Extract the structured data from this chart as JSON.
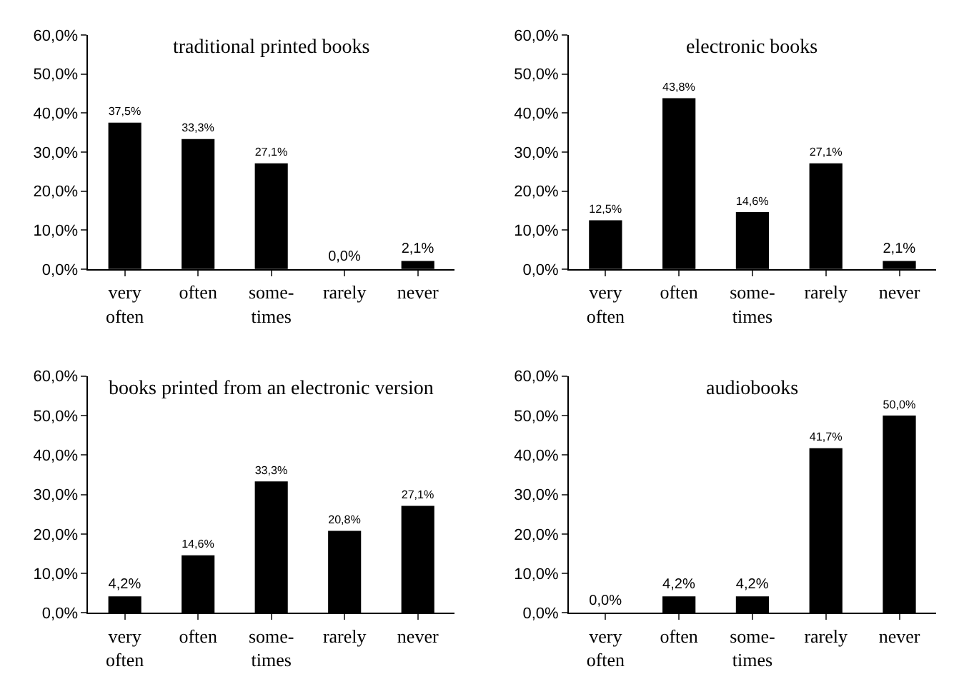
{
  "chart_data": [
    {
      "type": "bar",
      "title": "traditional printed books",
      "categories": [
        "very\noften",
        "often",
        "some-\ntimes",
        "rarely",
        "never"
      ],
      "values": [
        37.5,
        33.3,
        27.1,
        0.0,
        2.1
      ],
      "value_labels": [
        "37,5%",
        "33,3%",
        "27,1%",
        "0,0%",
        "2,1%"
      ],
      "color": "#000000",
      "ylim": [
        0,
        60
      ],
      "yticks": [
        {
          "value": 0,
          "label": "0,0%"
        },
        {
          "value": 10,
          "label": "10,0%"
        },
        {
          "value": 20,
          "label": "20,0%"
        },
        {
          "value": 30,
          "label": "30,0%"
        },
        {
          "value": 40,
          "label": "40,0%"
        },
        {
          "value": 50,
          "label": "50,0%"
        },
        {
          "value": 60,
          "label": "60,0%"
        }
      ],
      "grid": false,
      "legend": false
    },
    {
      "type": "bar",
      "title": "electronic books",
      "categories": [
        "very\noften",
        "often",
        "some-\ntimes",
        "rarely",
        "never"
      ],
      "values": [
        12.5,
        43.8,
        14.6,
        27.1,
        2.1
      ],
      "value_labels": [
        "12,5%",
        "43,8%",
        "14,6%",
        "27,1%",
        "2,1%"
      ],
      "color": "#000000",
      "ylim": [
        0,
        60
      ],
      "yticks": [
        {
          "value": 0,
          "label": "0,0%"
        },
        {
          "value": 10,
          "label": "10,0%"
        },
        {
          "value": 20,
          "label": "20,0%"
        },
        {
          "value": 30,
          "label": "30,0%"
        },
        {
          "value": 40,
          "label": "40,0%"
        },
        {
          "value": 50,
          "label": "50,0%"
        },
        {
          "value": 60,
          "label": "60,0%"
        }
      ],
      "grid": false,
      "legend": false
    },
    {
      "type": "bar",
      "title": "books printed from an electronic version",
      "categories": [
        "very\noften",
        "often",
        "some-\ntimes",
        "rarely",
        "never"
      ],
      "values": [
        4.2,
        14.6,
        33.3,
        20.8,
        27.1
      ],
      "value_labels": [
        "4,2%",
        "14,6%",
        "33,3%",
        "20,8%",
        "27,1%"
      ],
      "color": "#000000",
      "ylim": [
        0,
        60
      ],
      "yticks": [
        {
          "value": 0,
          "label": "0,0%"
        },
        {
          "value": 10,
          "label": "10,0%"
        },
        {
          "value": 20,
          "label": "20,0%"
        },
        {
          "value": 30,
          "label": "30,0%"
        },
        {
          "value": 40,
          "label": "40,0%"
        },
        {
          "value": 50,
          "label": "50,0%"
        },
        {
          "value": 60,
          "label": "60,0%"
        }
      ],
      "grid": false,
      "legend": false
    },
    {
      "type": "bar",
      "title": "audiobooks",
      "categories": [
        "very\noften",
        "often",
        "some-\ntimes",
        "rarely",
        "never"
      ],
      "values": [
        0.0,
        4.2,
        4.2,
        41.7,
        50.0
      ],
      "value_labels": [
        "0,0%",
        "4,2%",
        "4,2%",
        "41,7%",
        "50,0%"
      ],
      "color": "#000000",
      "ylim": [
        0,
        60
      ],
      "yticks": [
        {
          "value": 0,
          "label": "0,0%"
        },
        {
          "value": 10,
          "label": "10,0%"
        },
        {
          "value": 20,
          "label": "20,0%"
        },
        {
          "value": 30,
          "label": "30,0%"
        },
        {
          "value": 40,
          "label": "40,0%"
        },
        {
          "value": 50,
          "label": "50,0%"
        },
        {
          "value": 60,
          "label": "60,0%"
        }
      ],
      "grid": false,
      "legend": false
    }
  ]
}
